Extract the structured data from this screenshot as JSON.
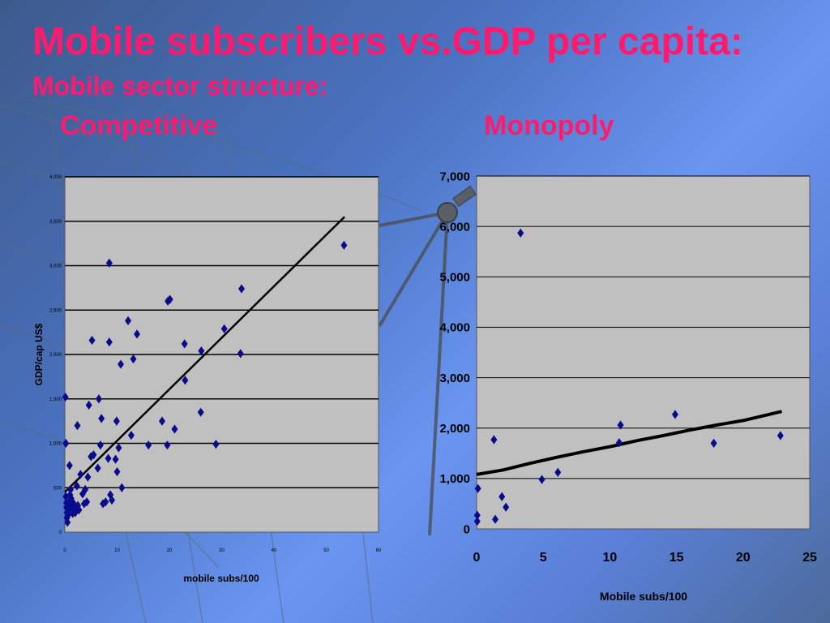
{
  "slide": {
    "title": "Mobile subscribers vs.GDP per capita:",
    "subtitle": "Mobile sector structure:",
    "left_label": "Competitive",
    "right_label": "Monopoly"
  },
  "colors": {
    "title": "#ff1a6e",
    "marker": "#0a0a8c",
    "trend": "#000000",
    "plot_bg": "#c0c0c0"
  },
  "chart_data": [
    {
      "type": "scatter",
      "title": "",
      "xlabel": "mobile subs/100",
      "ylabel": "GDP/cap US$",
      "xlim": [
        0,
        60
      ],
      "ylim": [
        0,
        4000
      ],
      "x_ticks": [
        "0",
        "10",
        "20",
        "30",
        "40",
        "50",
        "60"
      ],
      "y_ticks": [
        "0",
        "500",
        "1,000",
        "1,500",
        "2,000",
        "2,500",
        "3,000",
        "3,500",
        "4,000"
      ],
      "grid": "horizontal",
      "points": [
        [
          0.1,
          1520
        ],
        [
          0.2,
          1000
        ],
        [
          0.2,
          400
        ],
        [
          0.3,
          330
        ],
        [
          0.3,
          280
        ],
        [
          0.4,
          220
        ],
        [
          0.4,
          160
        ],
        [
          0.5,
          110
        ],
        [
          0.6,
          190
        ],
        [
          0.7,
          250
        ],
        [
          0.8,
          300
        ],
        [
          0.9,
          350
        ],
        [
          1.0,
          420
        ],
        [
          1.1,
          480
        ],
        [
          1.2,
          380
        ],
        [
          1.3,
          300
        ],
        [
          1.4,
          260
        ],
        [
          1.5,
          210
        ],
        [
          1.6,
          330
        ],
        [
          1.8,
          280
        ],
        [
          2.0,
          220
        ],
        [
          2.3,
          520
        ],
        [
          2.5,
          300
        ],
        [
          2.7,
          250
        ],
        [
          0.9,
          750
        ],
        [
          2.4,
          1200
        ],
        [
          3.0,
          650
        ],
        [
          3.4,
          430
        ],
        [
          3.7,
          320
        ],
        [
          3.9,
          480
        ],
        [
          4.2,
          340
        ],
        [
          4.4,
          620
        ],
        [
          4.6,
          1430
        ],
        [
          5.0,
          850
        ],
        [
          5.2,
          2160
        ],
        [
          5.5,
          870
        ],
        [
          6.3,
          720
        ],
        [
          6.5,
          1500
        ],
        [
          6.8,
          980
        ],
        [
          7.0,
          1280
        ],
        [
          7.3,
          320
        ],
        [
          7.8,
          340
        ],
        [
          8.3,
          830
        ],
        [
          8.5,
          2140
        ],
        [
          8.5,
          3030
        ],
        [
          8.7,
          420
        ],
        [
          9.0,
          360
        ],
        [
          9.7,
          820
        ],
        [
          9.9,
          1250
        ],
        [
          10.0,
          680
        ],
        [
          10.3,
          950
        ],
        [
          10.7,
          1890
        ],
        [
          10.9,
          500
        ],
        [
          12.1,
          2380
        ],
        [
          12.7,
          1090
        ],
        [
          13.1,
          1950
        ],
        [
          13.8,
          2230
        ],
        [
          16.0,
          980
        ],
        [
          18.6,
          1250
        ],
        [
          19.6,
          980
        ],
        [
          19.7,
          2600
        ],
        [
          20.1,
          2620
        ],
        [
          21.0,
          1160
        ],
        [
          22.9,
          2120
        ],
        [
          23.0,
          1710
        ],
        [
          26.1,
          2040
        ],
        [
          26.0,
          1350
        ],
        [
          28.9,
          990
        ],
        [
          30.5,
          2290
        ],
        [
          33.6,
          2010
        ],
        [
          33.8,
          2740
        ],
        [
          53.4,
          3230
        ]
      ],
      "trend": [
        [
          0,
          450
        ],
        [
          53.5,
          3550
        ]
      ]
    },
    {
      "type": "scatter",
      "title": "",
      "xlabel": "Mobile subs/100",
      "ylabel": "",
      "xlim": [
        0,
        25
      ],
      "ylim": [
        0,
        7000
      ],
      "x_ticks": [
        "0",
        "5",
        "10",
        "15",
        "20",
        "25"
      ],
      "y_ticks": [
        "0",
        "1,000",
        "2,000",
        "3,000",
        "4,000",
        "5,000",
        "6,000",
        "7,000"
      ],
      "grid": "horizontal",
      "points": [
        [
          0.05,
          150
        ],
        [
          0.05,
          270
        ],
        [
          0.1,
          800
        ],
        [
          1.3,
          1770
        ],
        [
          1.4,
          190
        ],
        [
          1.9,
          640
        ],
        [
          2.2,
          430
        ],
        [
          3.3,
          5870
        ],
        [
          4.9,
          980
        ],
        [
          6.1,
          1120
        ],
        [
          10.7,
          1710
        ],
        [
          10.8,
          2060
        ],
        [
          14.9,
          2270
        ],
        [
          17.8,
          1700
        ],
        [
          22.8,
          1850
        ]
      ],
      "trend": [
        [
          0,
          1080
        ],
        [
          2,
          1170
        ],
        [
          4,
          1300
        ],
        [
          6,
          1420
        ],
        [
          8,
          1530
        ],
        [
          10,
          1630
        ],
        [
          12,
          1750
        ],
        [
          14,
          1850
        ],
        [
          16,
          1960
        ],
        [
          18,
          2060
        ],
        [
          20,
          2150
        ],
        [
          22.9,
          2330
        ]
      ]
    }
  ]
}
